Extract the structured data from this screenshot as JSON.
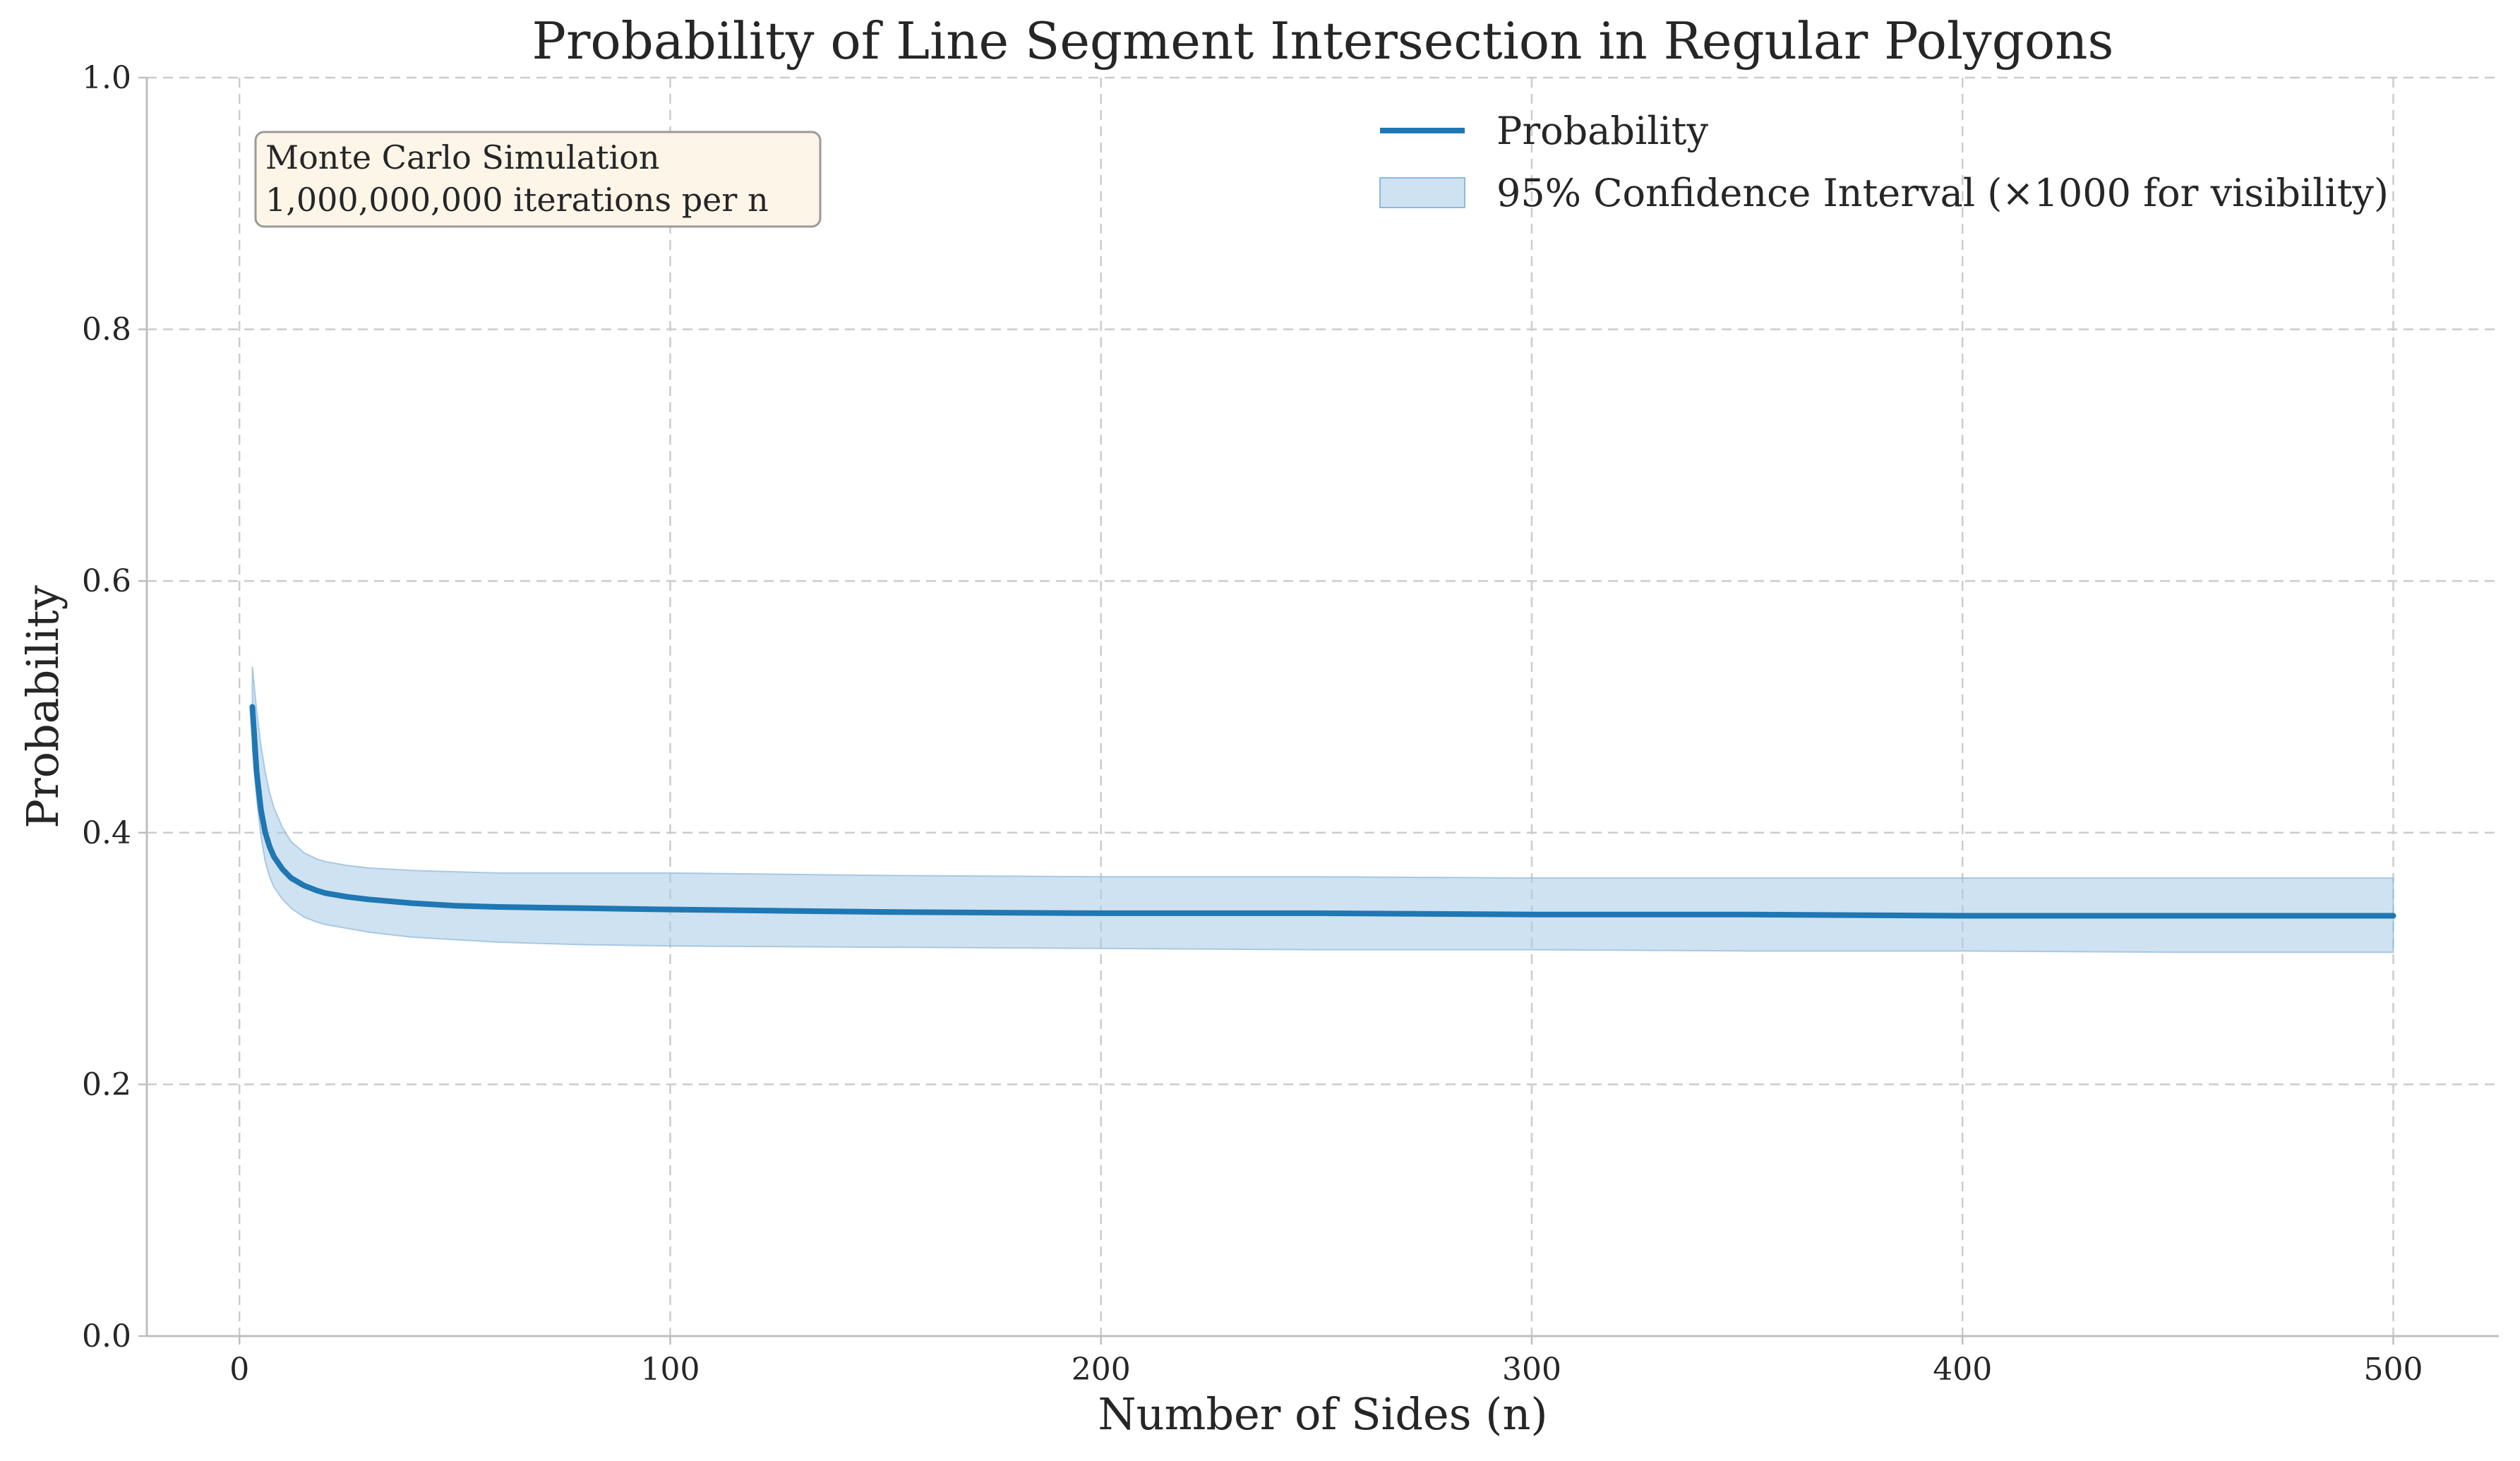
{
  "chart_data": {
    "type": "line",
    "title": "Probability of Line Segment Intersection in Regular Polygons",
    "xlabel": "Number of Sides (n)",
    "ylabel": "Probability",
    "xlim": [
      -21.5,
      524.5
    ],
    "ylim": [
      0,
      1
    ],
    "xticks": [
      0,
      100,
      200,
      300,
      400,
      500
    ],
    "yticks": [
      0.0,
      0.2,
      0.4,
      0.6,
      0.8,
      1.0
    ],
    "grid": true,
    "legend_position": "top-right",
    "colors": {
      "line": "#1f77b4",
      "band": "#a8cbe6",
      "band_edge": "#8fb8dc",
      "annotation_bg": "#fcf5e8",
      "annotation_border": "#9a9a9a"
    },
    "series": [
      {
        "name": "Probability",
        "x": [
          3,
          4,
          5,
          6,
          7,
          8,
          10,
          12,
          15,
          18,
          20,
          25,
          30,
          40,
          50,
          60,
          80,
          100,
          150,
          200,
          250,
          300,
          350,
          400,
          450,
          500
        ],
        "y": [
          0.5,
          0.448,
          0.418,
          0.4,
          0.389,
          0.381,
          0.371,
          0.364,
          0.358,
          0.354,
          0.352,
          0.349,
          0.347,
          0.344,
          0.342,
          0.341,
          0.34,
          0.339,
          0.337,
          0.336,
          0.336,
          0.335,
          0.335,
          0.334,
          0.334,
          0.334
        ]
      },
      {
        "name": "95% Confidence Interval (×1000 for visibility)",
        "type": "band",
        "x": [
          3,
          4,
          5,
          6,
          7,
          8,
          10,
          12,
          15,
          18,
          20,
          25,
          30,
          40,
          50,
          60,
          80,
          100,
          150,
          200,
          250,
          300,
          350,
          400,
          450,
          500
        ],
        "lower": [
          0.468,
          0.427,
          0.397,
          0.377,
          0.365,
          0.357,
          0.347,
          0.34,
          0.333,
          0.329,
          0.327,
          0.324,
          0.321,
          0.317,
          0.315,
          0.313,
          0.311,
          0.31,
          0.309,
          0.308,
          0.307,
          0.307,
          0.306,
          0.306,
          0.305,
          0.305
        ],
        "upper": [
          0.532,
          0.497,
          0.469,
          0.448,
          0.432,
          0.42,
          0.404,
          0.393,
          0.384,
          0.379,
          0.377,
          0.374,
          0.372,
          0.37,
          0.369,
          0.368,
          0.368,
          0.368,
          0.366,
          0.365,
          0.365,
          0.364,
          0.364,
          0.364,
          0.364,
          0.364
        ]
      }
    ],
    "annotation": {
      "line1": "Monte Carlo Simulation",
      "line2": "1,000,000,000 iterations per n"
    }
  }
}
